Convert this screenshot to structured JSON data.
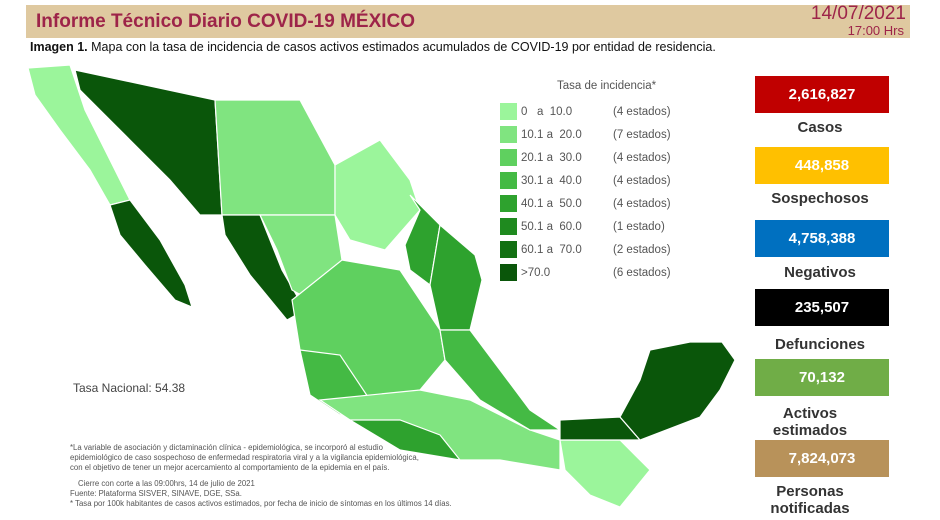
{
  "header": {
    "title": "Informe Técnico Diario COVID-19 MÉXICO",
    "date": "14/07/2021",
    "time": "17:00 Hrs"
  },
  "caption": {
    "bold": "Imagen 1.",
    "text": " Mapa con la tasa de incidencia de casos activos estimados acumulados de COVID-19 por entidad de residencia."
  },
  "legend": {
    "title": "Tasa de incidencia*",
    "items": [
      {
        "range": "0   a  10.0",
        "count": "(4 estados)",
        "color": "#9bf59b"
      },
      {
        "range": "10.1 a  20.0",
        "count": "(7 estados)",
        "color": "#80e480"
      },
      {
        "range": "20.1 a  30.0",
        "count": "(4 estados)",
        "color": "#5fd05f"
      },
      {
        "range": "30.1 a  40.0",
        "count": "(4 estados)",
        "color": "#44ba44"
      },
      {
        "range": "40.1 a  50.0",
        "count": "(4 estados)",
        "color": "#2ea22e"
      },
      {
        "range": "50.1 a  60.0",
        "count": "(1 estado)",
        "color": "#1f8a1f"
      },
      {
        "range": "60.1 a  70.0",
        "count": "(2 estados)",
        "color": "#127012"
      },
      {
        "range": ">70.0",
        "count": "(6 estados)",
        "color": "#0a560a"
      }
    ]
  },
  "national_rate": "Tasa Nacional: 54.38",
  "notes": [
    "*La variable de asociación y dictaminación clínica - epidemiológica, se incorporó al estudio",
    "epidemiológico de caso sospechoso de enfermedad respiratoria viral y a la vigilancia epidemiológica,",
    "con el objetivo de tener un mejor acercamiento al comportamiento de la epidemia en el país.",
    "Cierre con corte a las 09:00hrs, 14 de julio de 2021",
    "Fuente: Plataforma SISVER, SINAVE, DGE, SSa.",
    "* Tasa por 100k habitantes de casos activos estimados, por fecha de inicio de síntomas en los últimos 14 días."
  ],
  "stats": [
    {
      "value": "2,616,827",
      "label": "Casos",
      "color": "#c00000"
    },
    {
      "value": "448,858",
      "label": "Sospechosos",
      "color": "#ffc000"
    },
    {
      "value": "4,758,388",
      "label": "Negativos",
      "color": "#0070c0"
    },
    {
      "value": "235,507",
      "label": "Defunciones",
      "color": "#000000"
    },
    {
      "value": "70,132",
      "label": "Activos estimados",
      "color": "#70ad47"
    },
    {
      "value": "7,824,073",
      "label": "Personas notificadas",
      "color": "#b8925a"
    }
  ]
}
